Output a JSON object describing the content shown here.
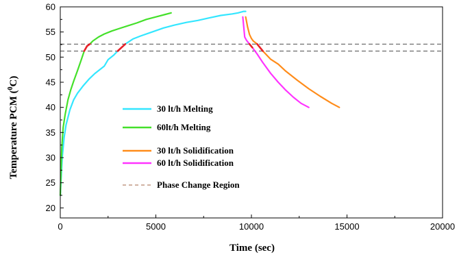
{
  "chart_data": {
    "type": "line",
    "title": "",
    "xlabel": "Time (sec)",
    "ylabel": "Temperature PCM (",
    "ylabel_sup": "0",
    "ylabel_tail": "C)",
    "xlim": [
      0,
      20000
    ],
    "ylim": [
      18,
      60
    ],
    "xticks": [
      0,
      5000,
      10000,
      15000,
      20000
    ],
    "yticks": [
      20,
      25,
      30,
      35,
      40,
      45,
      50,
      55,
      60
    ],
    "xtick_labels": [
      "0",
      "5000",
      "10000",
      "15000",
      "20000"
    ],
    "ytick_labels": [
      "20",
      "25",
      "30",
      "35",
      "40",
      "45",
      "50",
      "55",
      "60"
    ],
    "grid": false,
    "legend_position": "center-left",
    "phase_change_region": {
      "name": "Phase Change Region",
      "lower": 51.2,
      "upper": 52.6,
      "color": "#b5836a"
    },
    "highlight_color": "#e8212a",
    "series": [
      {
        "name": "30 lt/h Melting",
        "color": "#33e6ff",
        "x": [
          0,
          100,
          200,
          300,
          500,
          700,
          900,
          1200,
          1500,
          1800,
          2100,
          2300,
          2500,
          2800,
          3000,
          3400,
          3800,
          4200,
          4800,
          5400,
          6000,
          6600,
          7200,
          7800,
          8400,
          9000,
          9300,
          9600,
          9700
        ],
        "y": [
          22.5,
          30,
          34,
          36.5,
          39.5,
          41.5,
          42.8,
          44.3,
          45.6,
          46.7,
          47.6,
          48.2,
          49.5,
          50.4,
          51.2,
          52.6,
          53.6,
          54.2,
          55.0,
          55.8,
          56.4,
          56.9,
          57.3,
          57.8,
          58.3,
          58.6,
          58.8,
          59.1,
          59.1
        ]
      },
      {
        "name": "60lt/h Melting",
        "color": "#44e02a",
        "x": [
          0,
          80,
          150,
          250,
          400,
          550,
          700,
          900,
          1100,
          1250,
          1400,
          1550,
          1700,
          2000,
          2300,
          2700,
          3100,
          3500,
          4000,
          4500,
          5000,
          5500,
          5800
        ],
        "y": [
          22.5,
          32,
          36,
          38.5,
          41.5,
          43.5,
          45.2,
          47.3,
          49.5,
          51.2,
          52.2,
          52.6,
          53.2,
          54.0,
          54.6,
          55.2,
          55.7,
          56.2,
          56.8,
          57.5,
          58.0,
          58.5,
          58.8
        ]
      },
      {
        "name": "30 lt/h Solidification",
        "color": "#ff8c1a",
        "x": [
          9700,
          9800,
          9900,
          10000,
          10100,
          10300,
          10600,
          11000,
          11400,
          11800,
          12400,
          13000,
          13600,
          14200,
          14600
        ],
        "y": [
          58.0,
          56.0,
          54.5,
          53.7,
          53.2,
          52.6,
          51.2,
          49.6,
          48.6,
          47.2,
          45.4,
          43.7,
          42.2,
          40.8,
          40.0
        ]
      },
      {
        "name": "60 lt/h Solidification",
        "color": "#ff33ff",
        "x": [
          9550,
          9600,
          9650,
          9750,
          9900,
          10050,
          10300,
          10600,
          11000,
          11400,
          11800,
          12200,
          12600,
          13000
        ],
        "y": [
          58.0,
          56.0,
          54.0,
          53.3,
          52.6,
          51.9,
          50.6,
          48.9,
          46.8,
          45.0,
          43.4,
          42.0,
          40.8,
          40.0
        ]
      }
    ]
  }
}
